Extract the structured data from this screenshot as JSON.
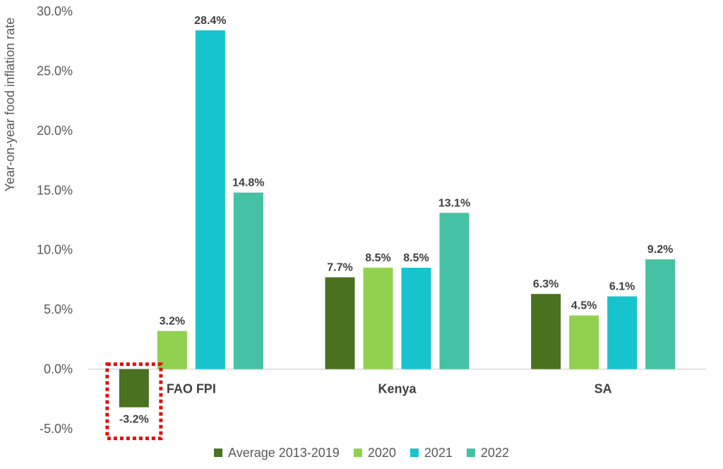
{
  "chart_data": {
    "type": "bar",
    "title": "",
    "xlabel": "",
    "ylabel": "Year-on-year food inflation rate",
    "categories": [
      "FAO FPI",
      "Kenya",
      "SA"
    ],
    "series": [
      {
        "name": "Average 2013-2019",
        "color": "#4a7120",
        "values": [
          -3.2,
          7.7,
          6.3
        ],
        "labels": [
          "-3.2%",
          "7.7%",
          "6.3%"
        ]
      },
      {
        "name": "2020",
        "color": "#92d050",
        "values": [
          3.2,
          8.5,
          4.5
        ],
        "labels": [
          "3.2%",
          "8.5%",
          "4.5%"
        ]
      },
      {
        "name": "2021",
        "color": "#17c3cc",
        "values": [
          28.4,
          8.5,
          6.1
        ],
        "labels": [
          "28.4%",
          "8.5%",
          "6.1%"
        ]
      },
      {
        "name": "2022",
        "color": "#45c1a4",
        "values": [
          14.8,
          13.1,
          9.2
        ],
        "labels": [
          "14.8%",
          "13.1%",
          "9.2%"
        ]
      }
    ],
    "ylim": [
      -5,
      30
    ],
    "yticks": [
      {
        "value": 30,
        "label": "30.0%"
      },
      {
        "value": 25,
        "label": "25.0%"
      },
      {
        "value": 20,
        "label": "20.0%"
      },
      {
        "value": 15,
        "label": "15.0%"
      },
      {
        "value": 10,
        "label": "10.0%"
      },
      {
        "value": 5,
        "label": "5.0%"
      },
      {
        "value": 0,
        "label": "0.0%"
      },
      {
        "value": -5,
        "label": "-5.0%"
      }
    ],
    "grid": false,
    "legend_position": "bottom",
    "highlight": {
      "series": 0,
      "category": 0,
      "color": "#e01010",
      "style": "dotted box"
    }
  }
}
